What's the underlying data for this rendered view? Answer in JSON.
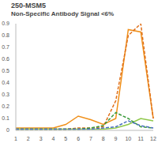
{
  "chart_data": {
    "type": "line",
    "title": "250-MSM5",
    "subtitle": "Non-Specific Antibody Signal <6%",
    "categories": [
      "1",
      "2",
      "3",
      "4",
      "5",
      "6",
      "7",
      "8",
      "9",
      "10",
      "11",
      "12"
    ],
    "series": [
      {
        "color": "#f0901a",
        "line_style": "solid",
        "values": [
          0.02,
          0.02,
          0.02,
          0.02,
          0.05,
          0.12,
          0.09,
          0.05,
          0.1,
          0.85,
          0.83,
          0.1
        ]
      },
      {
        "color": "#e0701a",
        "line_style": "dashed",
        "values": [
          0.01,
          0.01,
          0.01,
          0.01,
          0.01,
          0.02,
          0.02,
          0.03,
          0.25,
          0.8,
          0.9,
          0.1
        ]
      },
      {
        "color": "#8fc84a",
        "line_style": "solid",
        "values": [
          0.01,
          0.01,
          0.01,
          0.01,
          0.01,
          0.01,
          0.01,
          0.01,
          0.02,
          0.05,
          0.1,
          0.08
        ]
      },
      {
        "color": "#3a9a3a",
        "line_style": "dashed",
        "values": [
          0.01,
          0.01,
          0.01,
          0.01,
          0.01,
          0.01,
          0.02,
          0.04,
          0.15,
          0.1,
          0.03,
          0.02
        ]
      },
      {
        "color": "#4a6ec0",
        "line_style": "dashed",
        "values": [
          0.01,
          0.01,
          0.01,
          0.01,
          0.01,
          0.01,
          0.01,
          0.02,
          0.03,
          0.08,
          0.04,
          0.02
        ]
      }
    ],
    "ylim": [
      0,
      0.9
    ],
    "yticks": [
      0,
      0.1,
      0.2,
      0.3,
      0.4,
      0.5,
      0.6,
      0.7,
      0.8,
      0.9
    ],
    "grid": false
  }
}
